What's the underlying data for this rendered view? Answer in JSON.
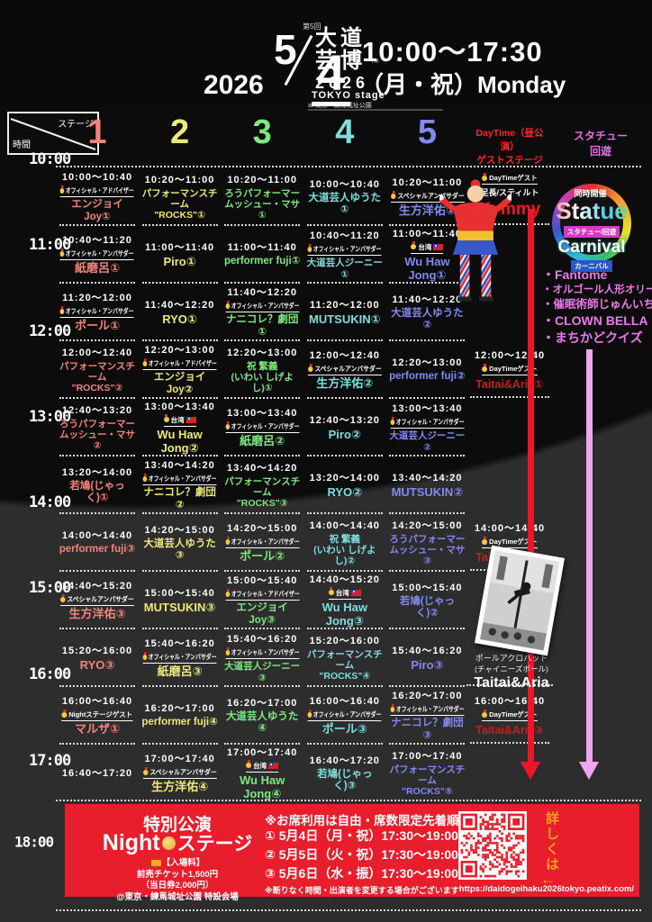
{
  "header": {
    "edition": "第5回",
    "logo_main": "大道\n芸博",
    "logo_tm": "TM",
    "logo_year": "2026",
    "logo_stage": "TOKYO stage",
    "logo_venue": "at 東京・練馬城址公園",
    "date_year": "2026",
    "date_month": "5",
    "date_day": "4",
    "time_range": "10:00〜17:30",
    "weekday": "（月・祝）Monday"
  },
  "corner": {
    "stage_label": "ステージ",
    "time_label": "時間"
  },
  "columns": {
    "daytime_header": "DayTime（昼公演）\nゲストステージ",
    "statue_header": "スタチュー\n回遊"
  },
  "time_labels": [
    "10:00",
    "11:00",
    "12:00",
    "13:00",
    "14:00",
    "15:00",
    "16:00",
    "17:00",
    "18:00"
  ],
  "stages": [
    {
      "number": "1",
      "color": "#f5837d",
      "cells": [
        {
          "time": "10:00〜10:40",
          "badge": "オフィシャル・アドバイザー",
          "name": "エンジョイJoy①"
        },
        {
          "time": "10:40〜11:20",
          "badge": "オフィシャル・アンバサダー",
          "name": "紙磨呂①"
        },
        {
          "time": "11:20〜12:00",
          "badge": "オフィシャル・アンバサダー",
          "name": "ポール①"
        },
        {
          "time": "12:00〜12:40",
          "name": "パフォーマンスチーム\n\"ROCKS\"②"
        },
        {
          "time": "12:40〜13:20",
          "name": "ろうパフォーマー\nムッシュー・マサ②"
        },
        {
          "time": "13:20〜14:00",
          "name": "若鳩(じゃっく)①"
        },
        {
          "time": "14:00〜14:40",
          "name": "performer fuji③"
        },
        {
          "time": "14:40〜15:20",
          "badge": "スペシャルアンバサダー",
          "name": "生方洋佑③"
        },
        {
          "time": "15:20〜16:00",
          "name": "RYO③"
        },
        {
          "time": "16:00〜16:40",
          "badge": "Nightステージゲスト",
          "name": "マルザ①"
        },
        {
          "time": "16:40〜17:20",
          "name": ""
        }
      ]
    },
    {
      "number": "2",
      "color": "#eee878",
      "cells": [
        {
          "time": "10:20〜11:00",
          "name": "パフォーマンスチーム\n\"ROCKS\"①"
        },
        {
          "time": "11:00〜11:40",
          "name": "Piro①"
        },
        {
          "time": "11:40〜12:20",
          "name": "RYO①"
        },
        {
          "time": "12:20〜13:00",
          "badge": "オフィシャル・アドバイザー",
          "name": "エンジョイJoy②"
        },
        {
          "time": "13:00〜13:40",
          "badge": "台湾",
          "flag": true,
          "name": "Wu Haw Jong②"
        },
        {
          "time": "13:40〜14:20",
          "badge": "オフィシャル・アンバサダー",
          "name": "ナニコレ？劇団②"
        },
        {
          "time": "14:20〜15:00",
          "name": "大道芸人ゆうた③"
        },
        {
          "time": "15:00〜15:40",
          "name": "MUTSUKIN③"
        },
        {
          "time": "15:40〜16:20",
          "badge": "オフィシャル・アンバサダー",
          "name": "紙磨呂③"
        },
        {
          "time": "16:20〜17:00",
          "name": "performer fuji④"
        },
        {
          "time": "17:00〜17:40",
          "badge": "スペシャルアンバサダー",
          "name": "生方洋佑④"
        }
      ]
    },
    {
      "number": "3",
      "color": "#7fe87f",
      "cells": [
        {
          "time": "10:20〜11:00",
          "name": "ろうパフォーマー\nムッシュー・マサ①"
        },
        {
          "time": "11:00〜11:40",
          "name": "performer fuji①"
        },
        {
          "time": "11:40〜12:20",
          "badge": "オフィシャル・アンバサダー",
          "name": "ナニコレ？劇団①"
        },
        {
          "time": "12:20〜13:00",
          "name": "祝 繁義\n(いわい しげよし)①"
        },
        {
          "time": "13:00〜13:40",
          "badge": "オフィシャル・アンバサダー",
          "name": "紙磨呂②"
        },
        {
          "time": "13:40〜14:20",
          "name": "パフォーマンスチーム\n\"ROCKS\"③"
        },
        {
          "time": "14:20〜15:00",
          "badge": "オフィシャル・アンバサダー",
          "name": "ポール②"
        },
        {
          "time": "15:00〜15:40",
          "badge": "オフィシャル・アドバイザー",
          "name": "エンジョイJoy③"
        },
        {
          "time": "15:40〜16:20",
          "badge": "オフィシャル・アンバサダー",
          "name": "大道芸人ジーニー③"
        },
        {
          "time": "16:20〜17:00",
          "name": "大道芸人ゆうた④"
        },
        {
          "time": "17:00〜17:40",
          "badge": "台湾",
          "flag": true,
          "name": "Wu Haw Jong④"
        }
      ]
    },
    {
      "number": "4",
      "color": "#7edede",
      "cells": [
        {
          "time": "10:00〜10:40",
          "name": "大道芸人ゆうた①"
        },
        {
          "time": "10:40〜11:20",
          "badge": "オフィシャル・アンバサダー",
          "name": "大道芸人ジーニー①"
        },
        {
          "time": "11:20〜12:00",
          "name": "MUTSUKIN①"
        },
        {
          "time": "12:00〜12:40",
          "badge": "スペシャルアンバサダー",
          "name": "生方洋佑②"
        },
        {
          "time": "12:40〜13:20",
          "name": "Piro②"
        },
        {
          "time": "13:20〜14:00",
          "name": "RYO②"
        },
        {
          "time": "14:00〜14:40",
          "name": "祝 繁義\n(いわい しげよし)②"
        },
        {
          "time": "14:40〜15:20",
          "badge": "台湾",
          "flag": true,
          "name": "Wu Haw Jong③"
        },
        {
          "time": "15:20〜16:00",
          "name": "パフォーマンスチーム\n\"ROCKS\"④"
        },
        {
          "time": "16:00〜16:40",
          "badge": "オフィシャル・アンバサダー",
          "name": "ポール③"
        },
        {
          "time": "16:40〜17:20",
          "name": "若鳩(じゃっく)③"
        }
      ]
    },
    {
      "number": "5",
      "color": "#8289f0",
      "cells": [
        {
          "time": "10:20〜11:00",
          "badge": "スペシャルアンバサダー",
          "name": "生方洋佑①"
        },
        {
          "time": "11:00〜11:40",
          "badge": "台湾",
          "flag": true,
          "name": "Wu Haw Jong①"
        },
        {
          "time": "11:40〜12:20",
          "name": "大道芸人ゆうた②"
        },
        {
          "time": "12:20〜13:00",
          "name": "performer fuji②"
        },
        {
          "time": "13:00〜13:40",
          "badge": "オフィシャル・アンバサダー",
          "name": "大道芸人ジーニー②"
        },
        {
          "time": "13:40〜14:20",
          "name": "MUTSUKIN②"
        },
        {
          "time": "14:20〜15:00",
          "name": "ろうパフォーマー\nムッシュー・マサ③"
        },
        {
          "time": "15:00〜15:40",
          "name": "若鳩(じゃっく)②"
        },
        {
          "time": "15:40〜16:20",
          "name": "Piro③"
        },
        {
          "time": "16:20〜17:00",
          "badge": "オフィシャル・アンバサダー",
          "name": "ナニコレ？劇団③"
        },
        {
          "time": "17:00〜17:40",
          "name": "パフォーマンスチーム\n\"ROCKS\"⑤"
        }
      ]
    }
  ],
  "daytime": {
    "badge": "DayTimeゲスト",
    "kymmy": {
      "role": "足長/スティルト",
      "name": "Kymmy"
    },
    "slots": [
      {
        "time": "12:00〜12:40",
        "name": "Taitai&Aria①"
      },
      {
        "time": "14:00〜14:40",
        "name": "Taitai&Aria②"
      },
      {
        "time": "16:00〜16:40",
        "name": "Taitai&Aria③"
      }
    ],
    "photo_caption_line1": "ポールアクロバット",
    "photo_caption_line2": "(チャイニーズポール)",
    "photo_caption_name": "Taitai&Aria"
  },
  "statue": {
    "logo": {
      "tagline": "同時開催",
      "mark": "!",
      "word1": "Statue",
      "badge1": "スタチュー/回遊",
      "word2": "Carnival",
      "badge2": "カーニバル"
    },
    "performers": [
      "Fantome",
      "オルゴール人形オリーブ",
      "催眠術師じゅんいち",
      "CLOWN BELLA",
      "まちかどクイズ"
    ]
  },
  "footer": {
    "title": "特別公演",
    "subtitle_pre": "Night",
    "subtitle_post": "ステージ",
    "fee_label": "【入場料】",
    "fee1": "前売チケット1,500円",
    "fee2": "（当日券2,000円）",
    "venue": "@東京・練馬城址公園 特設会場",
    "note_top": "※お席利用は自由・席数限定先着順",
    "schedule": [
      "① 5月4日（月・祝）17:30〜19:00",
      "② 5月5日（火・祝）17:30〜19:00",
      "③ 5月6日（水・振）17:30〜19:00"
    ],
    "note_bottom": "※断りなく時間・出演者を変更する場合がございます",
    "details_vertical": "詳しくは",
    "details_arrow": "←",
    "url": "https://daidogeihaku2026tokyo.peatix.com/"
  }
}
